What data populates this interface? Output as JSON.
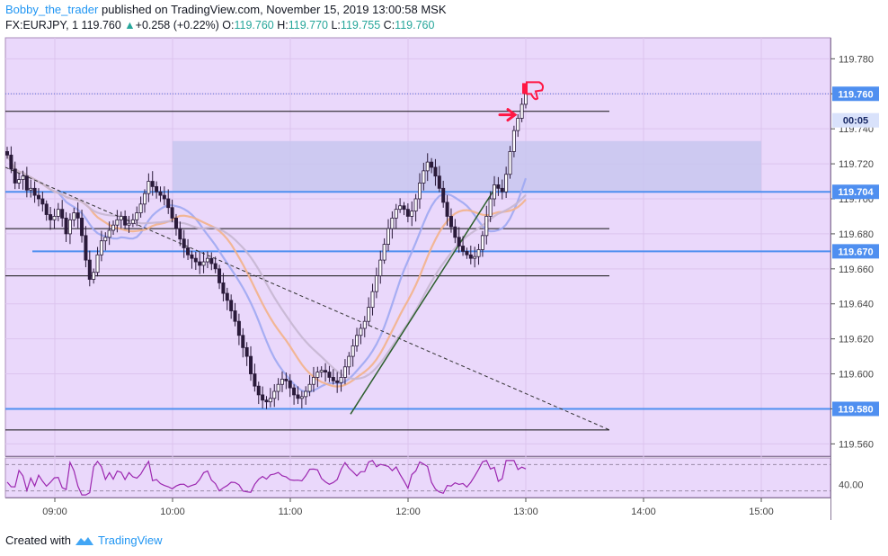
{
  "header": {
    "author": "Bobby_the_trader",
    "published_text": "published on TradingView.com, November 15, 2019 13:00:58 MSK"
  },
  "legend": {
    "symbol": "FX:EURJPY, 1",
    "last": "119.760",
    "change": "+0.258 (+0.22%)",
    "o_label": "O:",
    "o": "119.760",
    "h_label": "H:",
    "h": "119.770",
    "l_label": "L:",
    "l": "119.755",
    "c_label": "C:",
    "c": "119.760"
  },
  "footer": {
    "created_with": "Created with",
    "brand": "TradingView"
  },
  "colors": {
    "background": "#ead8fb",
    "candle_up": "#ffffff",
    "candle_outline": "#2a1a3a",
    "blue_level": "#4f8ff0",
    "zone": "#c5c5ef",
    "ma_fast": "#9fa8f2",
    "ma_mid": "#f3b38a",
    "ma_slow": "#c7b7d2",
    "trendline_up": "#2c5e2c",
    "trendline_down": "#333333",
    "oscillator": "#9c27b0",
    "marker": "#ff1744"
  },
  "chart_data": {
    "type": "candlestick",
    "y_ticks": [
      "119.780",
      "119.760",
      "119.740",
      "119.720",
      "119.700",
      "119.680",
      "119.660",
      "119.640",
      "119.620",
      "119.600",
      "119.580",
      "119.560"
    ],
    "x_ticks": [
      "09:00",
      "10:00",
      "11:00",
      "12:00",
      "13:00",
      "14:00",
      "15:00"
    ],
    "y_range": [
      119.553,
      119.792
    ],
    "price_labels": [
      {
        "value": "119.760",
        "level": 119.76
      },
      {
        "value": "00:05",
        "level": 119.75
      },
      {
        "value": "119.704",
        "level": 119.704
      },
      {
        "value": "119.670",
        "level": 119.67
      },
      {
        "value": "119.580",
        "level": 119.58
      }
    ],
    "horizontal_levels": [
      119.75,
      119.704,
      119.683,
      119.67,
      119.656,
      119.58,
      119.568
    ],
    "resistance_zone": [
      119.704,
      119.733
    ],
    "oscillator": {
      "tick": "40.00"
    },
    "closes": [
      119.725,
      119.717,
      119.709,
      119.711,
      119.713,
      119.705,
      119.706,
      119.702,
      119.7,
      119.697,
      119.691,
      119.688,
      119.69,
      119.694,
      119.689,
      119.68,
      119.688,
      119.692,
      119.689,
      119.679,
      119.665,
      119.654,
      119.658,
      119.668,
      119.676,
      119.678,
      119.682,
      119.685,
      119.688,
      119.69,
      119.685,
      119.686,
      119.688,
      119.692,
      119.697,
      119.703,
      119.71,
      119.707,
      119.704,
      119.702,
      119.7,
      119.695,
      119.689,
      119.683,
      119.677,
      119.672,
      119.668,
      119.666,
      119.664,
      119.662,
      119.664,
      119.666,
      119.663,
      119.66,
      119.652,
      119.646,
      119.642,
      119.636,
      119.63,
      119.622,
      119.615,
      119.61,
      119.6,
      119.593,
      119.588,
      119.585,
      119.584,
      119.586,
      119.59,
      119.594,
      119.597,
      119.596,
      119.592,
      119.588,
      119.586,
      119.587,
      119.59,
      119.594,
      119.598,
      119.601,
      119.602,
      119.601,
      119.598,
      119.596,
      119.595,
      119.598,
      119.604,
      119.61,
      119.616,
      119.622,
      119.626,
      119.63,
      119.638,
      119.647,
      119.656,
      119.665,
      119.674,
      119.683,
      119.689,
      119.694,
      119.696,
      119.694,
      119.69,
      119.693,
      119.7,
      119.709,
      119.716,
      119.721,
      119.718,
      119.713,
      119.706,
      119.698,
      119.69,
      119.684,
      119.678,
      119.673,
      119.67,
      119.668,
      119.666,
      119.667,
      119.671,
      119.679,
      119.69,
      119.7,
      119.708,
      119.706,
      119.704,
      119.714,
      119.727,
      119.739,
      119.746,
      119.754,
      119.76
    ]
  }
}
